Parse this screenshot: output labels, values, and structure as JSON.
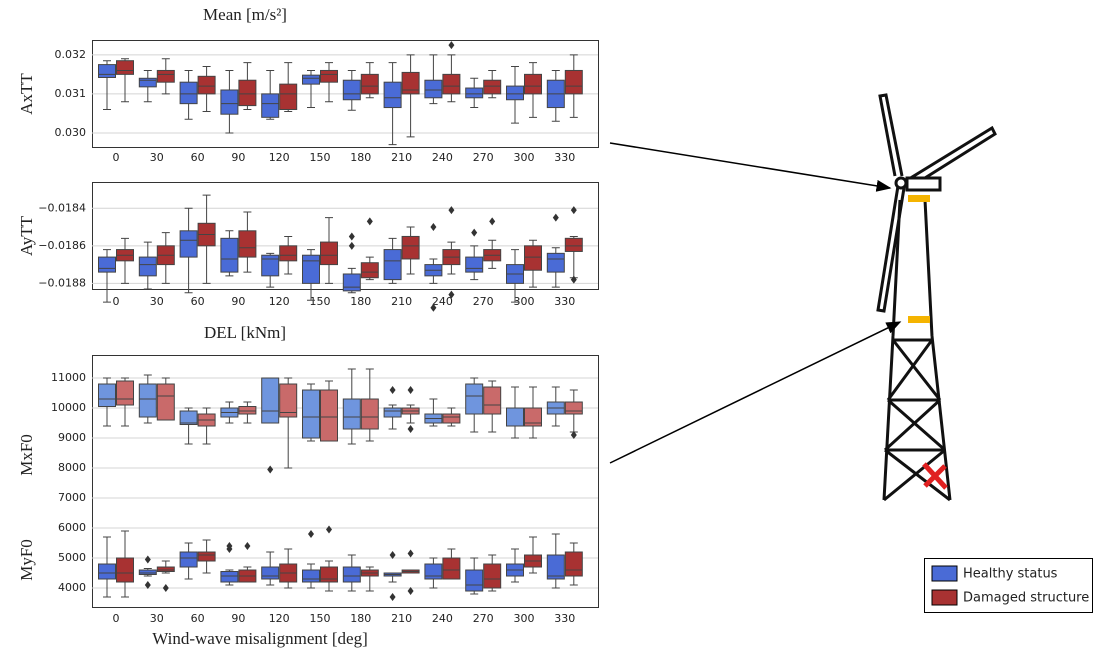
{
  "chart_data": [
    {
      "type": "box",
      "title": "Mean [m/s²]",
      "y_label": "AxTT",
      "grid": true,
      "categories": [
        "0",
        "30",
        "60",
        "90",
        "120",
        "150",
        "180",
        "210",
        "240",
        "270",
        "300",
        "330"
      ],
      "ylim": [
        0.02964,
        0.03238
      ],
      "yticks": [
        {
          "value": 0.03,
          "label": "0.030"
        },
        0.031,
        0.032
      ],
      "series": [
        {
          "name": "Healthy status",
          "color": "#4a6bd6",
          "whislo": [
            0.0306,
            0.0308,
            0.03035,
            0.03,
            0.03035,
            0.03065,
            0.03058,
            0.0297,
            0.03075,
            0.03065,
            0.03025,
            0.0303
          ],
          "q1": [
            0.03142,
            0.03118,
            0.03075,
            0.03048,
            0.0304,
            0.03125,
            0.03085,
            0.03065,
            0.0309,
            0.0309,
            0.03085,
            0.03065
          ],
          "median": [
            0.0315,
            0.03135,
            0.031,
            0.03075,
            0.03075,
            0.0314,
            0.031,
            0.0309,
            0.0311,
            0.031,
            0.031,
            0.031
          ],
          "q3": [
            0.03175,
            0.0314,
            0.0313,
            0.0311,
            0.031,
            0.03148,
            0.03135,
            0.0313,
            0.03135,
            0.03115,
            0.0312,
            0.03135
          ],
          "whishi": [
            0.03185,
            0.0316,
            0.0316,
            0.0316,
            0.0316,
            0.0316,
            0.0316,
            0.0318,
            0.032,
            0.0314,
            0.0317,
            0.0316
          ],
          "outliers": [
            [],
            [],
            [],
            [],
            [],
            [],
            [],
            [],
            [],
            [],
            [],
            []
          ]
        },
        {
          "name": "Damaged structure",
          "color": "#a83232",
          "whislo": [
            0.0308,
            0.031,
            0.03055,
            0.0306,
            0.03055,
            0.0308,
            0.0309,
            0.0299,
            0.0308,
            0.0309,
            0.0304,
            0.0304
          ],
          "q1": [
            0.0315,
            0.0313,
            0.031,
            0.0307,
            0.0306,
            0.0313,
            0.031,
            0.031,
            0.031,
            0.031,
            0.031,
            0.031
          ],
          "median": [
            0.0316,
            0.0315,
            0.0312,
            0.031,
            0.031,
            0.0315,
            0.0312,
            0.0311,
            0.0312,
            0.0312,
            0.0312,
            0.0312
          ],
          "q3": [
            0.03185,
            0.0316,
            0.03145,
            0.03135,
            0.03125,
            0.0316,
            0.0315,
            0.03155,
            0.0315,
            0.03135,
            0.0315,
            0.0316
          ],
          "whishi": [
            0.0319,
            0.0319,
            0.0317,
            0.0318,
            0.0318,
            0.0318,
            0.0318,
            0.032,
            0.032,
            0.0316,
            0.0318,
            0.032
          ],
          "outliers": [
            [],
            [],
            [],
            [],
            [],
            [],
            [],
            [],
            [
              0.03225
            ],
            [],
            [],
            []
          ]
        }
      ]
    },
    {
      "type": "box",
      "y_label": "AyTT",
      "grid": true,
      "categories": [
        "0",
        "30",
        "60",
        "90",
        "120",
        "150",
        "180",
        "210",
        "240",
        "270",
        "300",
        "330"
      ],
      "ylim": [
        -0.01883,
        -0.01826
      ],
      "yticks": [
        {
          "value": -0.0188,
          "label": "−0.0188"
        },
        {
          "value": -0.0186,
          "label": "−0.0186"
        },
        {
          "value": -0.0184,
          "label": "−0.0184"
        }
      ],
      "series": [
        {
          "name": "Healthy status",
          "color": "#4a6bd6",
          "whislo": [
            -0.0189,
            -0.01883,
            -0.01885,
            -0.01876,
            -0.01882,
            -0.01889,
            -0.01885,
            -0.0188,
            -0.0188,
            -0.01878,
            -0.0189,
            -0.01882
          ],
          "q1": [
            -0.01874,
            -0.01876,
            -0.01866,
            -0.01874,
            -0.01876,
            -0.0188,
            -0.01884,
            -0.01878,
            -0.01876,
            -0.01874,
            -0.0188,
            -0.01874
          ],
          "median": [
            -0.01872,
            -0.0187,
            -0.01857,
            -0.01867,
            -0.01867,
            -0.01868,
            -0.01882,
            -0.01868,
            -0.01873,
            -0.01872,
            -0.01875,
            -0.01867
          ],
          "q3": [
            -0.01866,
            -0.01866,
            -0.01852,
            -0.01856,
            -0.01865,
            -0.01865,
            -0.01875,
            -0.01862,
            -0.0187,
            -0.01866,
            -0.0187,
            -0.01864
          ],
          "whishi": [
            -0.01862,
            -0.01858,
            -0.0184,
            -0.01852,
            -0.01864,
            -0.01862,
            -0.01872,
            -0.01856,
            -0.01867,
            -0.0186,
            -0.01862,
            -0.01861
          ],
          "outliers": [
            [],
            [],
            [],
            [],
            [],
            [],
            [
              -0.01855,
              -0.0186
            ],
            [],
            [
              -0.0185,
              -0.01893
            ],
            [
              -0.01853
            ],
            [],
            [
              -0.01845
            ]
          ]
        },
        {
          "name": "Damaged structure",
          "color": "#a83232",
          "whislo": [
            -0.0188,
            -0.0188,
            -0.0188,
            -0.01874,
            -0.01875,
            -0.0188,
            -0.01878,
            -0.01875,
            -0.01875,
            -0.01872,
            -0.01882,
            -0.01877
          ],
          "q1": [
            -0.01868,
            -0.0187,
            -0.0186,
            -0.01866,
            -0.01868,
            -0.0187,
            -0.01877,
            -0.01867,
            -0.0187,
            -0.01868,
            -0.01873,
            -0.01863
          ],
          "median": [
            -0.01865,
            -0.01865,
            -0.01854,
            -0.01861,
            -0.01865,
            -0.01865,
            -0.01874,
            -0.0186,
            -0.01866,
            -0.01865,
            -0.01866,
            -0.0186
          ],
          "q3": [
            -0.01862,
            -0.0186,
            -0.01848,
            -0.01852,
            -0.0186,
            -0.01858,
            -0.01869,
            -0.01855,
            -0.01862,
            -0.01862,
            -0.0186,
            -0.01856
          ],
          "whishi": [
            -0.01856,
            -0.01853,
            -0.01833,
            -0.01842,
            -0.01855,
            -0.01845,
            -0.01866,
            -0.0185,
            -0.01858,
            -0.01857,
            -0.01857,
            -0.01855
          ],
          "outliers": [
            [],
            [],
            [],
            [],
            [],
            [],
            [
              -0.01847
            ],
            [],
            [
              -0.01841,
              -0.01886
            ],
            [
              -0.01847
            ],
            [],
            [
              -0.01841,
              -0.01878
            ]
          ]
        }
      ]
    },
    {
      "type": "box",
      "title": "DEL [kNm]",
      "y_label": "MxF0",
      "grid": true,
      "ylim": [
        3367,
        11767
      ],
      "yticks": [
        4000,
        5000,
        6000,
        7000,
        8000,
        9000,
        10000,
        11000
      ],
      "series": [
        {
          "name": "Healthy status",
          "color": "#6f95de",
          "whislo": [
            9400,
            9500,
            8800,
            9500,
            9500,
            8900,
            8800,
            9300,
            9400,
            9200,
            9000,
            9400
          ],
          "q1": [
            10050,
            9700,
            9450,
            9700,
            9500,
            9000,
            9300,
            9700,
            9500,
            9800,
            9400,
            9800
          ],
          "median": [
            10300,
            10300,
            9500,
            9850,
            9900,
            9700,
            9700,
            9900,
            9650,
            10400,
            9400,
            10000
          ],
          "q3": [
            10800,
            10800,
            9900,
            10000,
            11000,
            10600,
            10300,
            10000,
            9800,
            10800,
            10000,
            10200
          ],
          "whishi": [
            11000,
            11100,
            10000,
            10200,
            11000,
            10800,
            11300,
            10100,
            10300,
            11000,
            10700,
            10700
          ],
          "outliers": [
            [],
            [],
            [],
            [],
            [
              7950
            ],
            [],
            [],
            [
              10600
            ],
            [],
            [],
            [],
            []
          ]
        },
        {
          "name": "Damaged structure",
          "color": "#c96a6a",
          "whislo": [
            9400,
            9600,
            8800,
            9500,
            8000,
            8900,
            8900,
            9500,
            9400,
            9200,
            9000,
            9200
          ],
          "q1": [
            10100,
            9600,
            9400,
            9800,
            9700,
            8900,
            9300,
            9800,
            9500,
            9800,
            9400,
            9800
          ],
          "median": [
            10300,
            10400,
            9600,
            9900,
            9850,
            9700,
            9700,
            9900,
            9700,
            10100,
            9500,
            9900
          ],
          "q3": [
            10900,
            10800,
            9800,
            10050,
            10800,
            10600,
            10300,
            10000,
            9800,
            10700,
            10000,
            10200
          ],
          "whishi": [
            11000,
            11000,
            10000,
            10200,
            11000,
            10900,
            11300,
            10100,
            10000,
            10900,
            10700,
            10600
          ],
          "outliers": [
            [],
            [],
            [],
            [],
            [],
            [],
            [],
            [
              10600,
              9300
            ],
            [],
            [],
            [],
            [
              9100
            ]
          ]
        }
      ]
    },
    {
      "type": "box",
      "y_label": "MyF0",
      "x_label": "Wind-wave misalignment [deg]",
      "categories": [
        "0",
        "30",
        "60",
        "90",
        "120",
        "150",
        "180",
        "210",
        "240",
        "270",
        "300",
        "330"
      ],
      "ylim": [
        3367,
        11767
      ],
      "series": [
        {
          "name": "Healthy status",
          "color": "#4a6bd6",
          "whislo": [
            3700,
            4400,
            4300,
            4100,
            4100,
            4000,
            3900,
            4200,
            4000,
            3800,
            4200,
            4000
          ],
          "q1": [
            4300,
            4450,
            4700,
            4200,
            4300,
            4200,
            4200,
            4400,
            4300,
            3900,
            4400,
            4300
          ],
          "median": [
            4500,
            4500,
            5000,
            4400,
            4400,
            4300,
            4400,
            4450,
            4400,
            4100,
            4600,
            4400
          ],
          "q3": [
            4800,
            4600,
            5200,
            4550,
            4700,
            4600,
            4700,
            4500,
            4800,
            4600,
            4800,
            5100
          ],
          "whishi": [
            5700,
            4650,
            5500,
            4600,
            5200,
            4800,
            5100,
            4500,
            5000,
            5000,
            5300,
            5800
          ],
          "outliers": [
            [],
            [
              4950,
              4100
            ],
            [],
            [
              5300,
              5400
            ],
            [],
            [
              5800
            ],
            [],
            [
              5100,
              3700
            ],
            [],
            [],
            [],
            []
          ]
        },
        {
          "name": "Damaged structure",
          "color": "#a83232",
          "whislo": [
            3700,
            4500,
            4500,
            4200,
            4000,
            3900,
            3900,
            4500,
            4300,
            3900,
            4500,
            4100
          ],
          "q1": [
            4200,
            4550,
            4900,
            4200,
            4200,
            4200,
            4400,
            4500,
            4300,
            4000,
            4700,
            4400
          ],
          "median": [
            4500,
            4600,
            5100,
            4400,
            4500,
            4300,
            4500,
            4550,
            4600,
            4300,
            4900,
            4600
          ],
          "q3": [
            5000,
            4700,
            5200,
            4600,
            4800,
            4700,
            4600,
            4600,
            5000,
            4800,
            5100,
            5200
          ],
          "whishi": [
            5900,
            4900,
            5600,
            4700,
            5300,
            4900,
            4700,
            4600,
            5300,
            5100,
            5700,
            5500
          ],
          "outliers": [
            [],
            [
              4000
            ],
            [],
            [
              5400
            ],
            [],
            [
              5950
            ],
            [],
            [
              5150,
              3900
            ],
            [],
            [],
            [],
            []
          ]
        }
      ]
    }
  ]
}
